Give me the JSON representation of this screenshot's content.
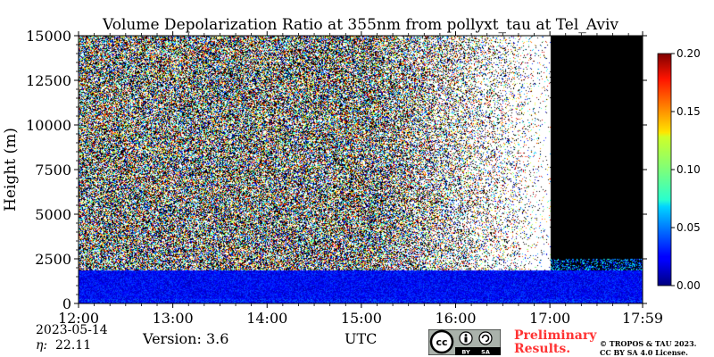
{
  "chart_data": {
    "type": "heatmap",
    "title": "Volume Depolarization Ratio at 355nm from pollyxt_tau at Tel_Aviv",
    "ylabel": "Height (m)",
    "xlabel": "UTC",
    "x_range": [
      "12:00",
      "17:59"
    ],
    "ylim": [
      0,
      15000
    ],
    "xticks": [
      "12:00",
      "13:00",
      "14:00",
      "15:00",
      "16:00",
      "17:00",
      "17:59"
    ],
    "yticks": [
      "0",
      "2500",
      "5000",
      "7500",
      "10000",
      "12500",
      "15000"
    ],
    "colorbar": {
      "range": [
        0.0,
        0.2
      ],
      "ticks": [
        "0.00",
        "0.05",
        "0.10",
        "0.15",
        "0.20"
      ],
      "colormap": "jet"
    },
    "features": [
      {
        "name": "boundary_layer",
        "top_m": 1900,
        "value_range": [
          0.01,
          0.04
        ]
      },
      {
        "name": "noise_above",
        "value_range": [
          0.0,
          0.2
        ]
      },
      {
        "name": "no_signal_after",
        "time": "17:00"
      }
    ]
  },
  "footer": {
    "date": "2023-05-14",
    "eta_label": "η:",
    "eta_value": "22.11",
    "version": "Version: 3.6",
    "utc": "UTC",
    "preliminary": [
      "Preliminary",
      "Results."
    ],
    "copyright": [
      "© TROPOS & TAU 2023.",
      "CC BY SA 4.0 License."
    ]
  },
  "license_badge": {
    "labels": [
      "BY",
      "SA"
    ]
  },
  "colors": {
    "no_data": "#000000",
    "background": "#ffffff"
  }
}
